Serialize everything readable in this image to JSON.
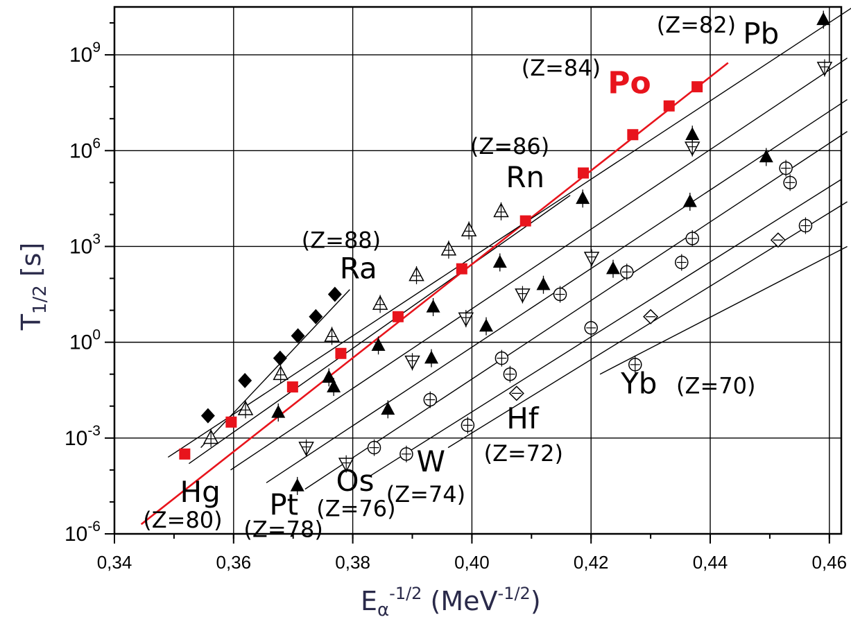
{
  "chart_data": {
    "type": "scatter",
    "x_axis": {
      "label_base": "E",
      "label_sub": "α",
      "label_sup": "-1/2",
      "label_unit_base": " (MeV",
      "label_unit_sup": "-1/2",
      "label_unit_close": ")",
      "range": [
        0.34,
        0.462
      ],
      "ticks": [
        0.34,
        0.36,
        0.38,
        0.4,
        0.42,
        0.44,
        0.46
      ],
      "tick_labels": [
        "0,34",
        "0,36",
        "0,38",
        "0,40",
        "0,42",
        "0,44",
        "0,46"
      ]
    },
    "y_axis": {
      "label_base": "T",
      "label_sub": "1/2",
      "label_unit": " [s]",
      "scale": "log",
      "range_exp": [
        -6,
        10.5
      ],
      "ticks_exp": [
        -6,
        -3,
        0,
        3,
        6,
        9
      ],
      "tick_labels": [
        {
          "base": "10",
          "exp": "-6"
        },
        {
          "base": "10",
          "exp": "-3"
        },
        {
          "base": "10",
          "exp": "0"
        },
        {
          "base": "10",
          "exp": "3"
        },
        {
          "base": "10",
          "exp": "6"
        },
        {
          "base": "10",
          "exp": "9"
        }
      ]
    },
    "grid": true,
    "series": [
      {
        "element": "Ra",
        "z_label": "(Z=88)",
        "marker": "diamond-filled",
        "color": "#000000",
        "fit": [
          [
            0.3545,
            -3.3
          ],
          [
            0.3795,
            1.65
          ]
        ],
        "points": [
          [
            0.3557,
            -2.3
          ],
          [
            0.3619,
            -1.2
          ],
          [
            0.3678,
            -0.5
          ],
          [
            0.3708,
            0.2
          ],
          [
            0.3738,
            0.8
          ],
          [
            0.377,
            1.5
          ]
        ]
      },
      {
        "element": "Rn",
        "z_label": "(Z=86)",
        "marker": "triangle-open",
        "color": "#000000",
        "fit": [
          [
            0.3525,
            -3.8
          ],
          [
            0.4165,
            4.6
          ]
        ],
        "points": [
          [
            0.3562,
            -3.0
          ],
          [
            0.362,
            -2.1
          ],
          [
            0.3679,
            -1.0
          ],
          [
            0.3765,
            0.2
          ],
          [
            0.3846,
            1.2
          ],
          [
            0.3907,
            2.1
          ],
          [
            0.3961,
            2.9
          ],
          [
            0.3995,
            3.5
          ],
          [
            0.4049,
            4.1
          ]
        ]
      },
      {
        "element": "Po",
        "z_label": "(Z=84)",
        "marker": "square-filled",
        "color": "#e8141c",
        "fit": [
          [
            0.3445,
            -5.7
          ],
          [
            0.443,
            8.75
          ]
        ],
        "points": [
          [
            0.3518,
            -3.5
          ],
          [
            0.3596,
            -2.5
          ],
          [
            0.3699,
            -1.4
          ],
          [
            0.378,
            -0.35
          ],
          [
            0.3876,
            0.8
          ],
          [
            0.3983,
            2.3
          ],
          [
            0.409,
            3.8
          ],
          [
            0.4187,
            5.3
          ],
          [
            0.427,
            6.5
          ],
          [
            0.4331,
            7.4
          ],
          [
            0.4378,
            8.0
          ]
        ]
      },
      {
        "element": "Pb",
        "z_label": "(Z=82)",
        "marker": "triangle-filled",
        "color": "#000000",
        "fit": [
          [
            0.349,
            -3.6
          ],
          [
            0.464,
            10.5
          ]
        ],
        "points": [
          [
            0.3675,
            -2.2
          ],
          [
            0.376,
            -1.1
          ],
          [
            0.3843,
            -0.1
          ],
          [
            0.3935,
            1.1
          ],
          [
            0.4047,
            2.5
          ],
          [
            0.4186,
            4.5
          ],
          [
            0.437,
            6.5
          ],
          [
            0.459,
            10.1
          ]
        ]
      },
      {
        "element": "Hg",
        "z_label": "(Z=80)",
        "marker": "triangle-filled",
        "color": "#000000",
        "fit": [
          [
            0.3595,
            -4.0
          ],
          [
            0.463,
            8.9
          ]
        ],
        "points": [
          [
            0.3707,
            -4.5
          ],
          [
            0.3768,
            -1.4
          ],
          [
            0.3859,
            -2.1
          ],
          [
            0.3932,
            -0.5
          ],
          [
            0.4024,
            0.5
          ],
          [
            0.412,
            1.8
          ],
          [
            0.4237,
            2.3
          ],
          [
            0.4366,
            4.4
          ],
          [
            0.4494,
            5.8
          ]
        ]
      },
      {
        "element": "Pt",
        "z_label": "(Z=78)",
        "marker": "triangle-down-open",
        "color": "#000000",
        "fit": [
          [
            0.3655,
            -4.4
          ],
          [
            0.463,
            7.6
          ]
        ],
        "points": [
          [
            0.3722,
            -3.3
          ],
          [
            0.3789,
            -3.8
          ],
          [
            0.39,
            -0.6
          ],
          [
            0.399,
            0.75
          ],
          [
            0.4085,
            1.5
          ],
          [
            0.4201,
            2.65
          ],
          [
            0.437,
            6.1
          ],
          [
            0.4592,
            8.6
          ]
        ]
      },
      {
        "element": "Os",
        "z_label": "(Z=76)",
        "marker": "circle-open",
        "color": "#000000",
        "fit": [
          [
            0.372,
            -4.6
          ],
          [
            0.463,
            6.6
          ]
        ],
        "points": [
          [
            0.3836,
            -3.3
          ],
          [
            0.393,
            -1.8
          ],
          [
            0.405,
            -0.5
          ],
          [
            0.4148,
            1.5
          ],
          [
            0.426,
            2.2
          ],
          [
            0.437,
            3.25
          ],
          [
            0.4527,
            5.45
          ],
          [
            0.4534,
            5.0
          ]
        ]
      },
      {
        "element": "W",
        "z_label": "(Z=74)",
        "marker": "circle-open",
        "color": "#000000",
        "fit": [
          [
            0.3828,
            -4.2
          ],
          [
            0.462,
            5.1
          ]
        ],
        "points": [
          [
            0.389,
            -3.5
          ],
          [
            0.3993,
            -2.6
          ],
          [
            0.4064,
            -1.0
          ],
          [
            0.42,
            0.45
          ],
          [
            0.4352,
            2.5
          ],
          [
            0.456,
            3.65
          ]
        ]
      },
      {
        "element": "Hf",
        "z_label": "(Z=72)",
        "marker": "diamond-open",
        "color": "#000000",
        "fit": [
          [
            0.396,
            -3.3
          ],
          [
            0.463,
            4.4
          ]
        ],
        "points": [
          [
            0.4075,
            -1.6
          ],
          [
            0.43,
            0.8
          ],
          [
            0.4514,
            3.2
          ]
        ]
      },
      {
        "element": "Yb",
        "z_label": "(Z=70)",
        "marker": "circle-open",
        "color": "#000000",
        "fit": [
          [
            0.4215,
            -1.0
          ],
          [
            0.463,
            3.0
          ]
        ],
        "points": [
          [
            0.4274,
            -0.7
          ]
        ]
      }
    ],
    "annotations": [
      {
        "text": "(Z=88)",
        "x": 0.3714,
        "y_exp": 2.96,
        "size": 32,
        "anchor": "start",
        "color": "#000000",
        "weight": "normal",
        "name": "label-ra-z"
      },
      {
        "text": "Ra",
        "x": 0.3778,
        "y_exp": 2.0,
        "size": 42,
        "anchor": "start",
        "color": "#000000",
        "weight": "normal",
        "name": "label-ra"
      },
      {
        "text": "(Z=86)",
        "x": 0.3997,
        "y_exp": 5.9,
        "size": 32,
        "anchor": "start",
        "color": "#000000",
        "weight": "normal",
        "name": "label-rn-z"
      },
      {
        "text": "Rn",
        "x": 0.4057,
        "y_exp": 4.85,
        "size": 42,
        "anchor": "start",
        "color": "#000000",
        "weight": "normal",
        "name": "label-rn"
      },
      {
        "text": "(Z=84)",
        "x": 0.4083,
        "y_exp": 8.35,
        "size": 32,
        "anchor": "start",
        "color": "#000000",
        "weight": "normal",
        "name": "label-po-z"
      },
      {
        "text": "Po",
        "x": 0.4228,
        "y_exp": 7.8,
        "size": 44,
        "anchor": "start",
        "color": "#e8141c",
        "weight": "bold",
        "name": "label-po"
      },
      {
        "text": "(Z=82)",
        "x": 0.431,
        "y_exp": 9.7,
        "size": 32,
        "anchor": "start",
        "color": "#000000",
        "weight": "normal",
        "name": "label-pb-z"
      },
      {
        "text": "Pb",
        "x": 0.4455,
        "y_exp": 9.35,
        "size": 42,
        "anchor": "start",
        "color": "#000000",
        "weight": "normal",
        "name": "label-pb"
      },
      {
        "text": "Hg",
        "x": 0.351,
        "y_exp": -5.0,
        "size": 42,
        "anchor": "start",
        "color": "#000000",
        "weight": "normal",
        "name": "label-hg"
      },
      {
        "text": "(Z=80)",
        "x": 0.3448,
        "y_exp": -5.8,
        "size": 32,
        "anchor": "start",
        "color": "#000000",
        "weight": "normal",
        "name": "label-hg-z"
      },
      {
        "text": "Pt",
        "x": 0.366,
        "y_exp": -5.4,
        "size": 42,
        "anchor": "start",
        "color": "#000000",
        "weight": "normal",
        "name": "label-pt"
      },
      {
        "text": "(Z=78)",
        "x": 0.3617,
        "y_exp": -6.1,
        "size": 32,
        "anchor": "start",
        "color": "#000000",
        "weight": "normal",
        "name": "label-pt-z"
      },
      {
        "text": "Os",
        "x": 0.3772,
        "y_exp": -4.65,
        "size": 42,
        "anchor": "start",
        "color": "#000000",
        "weight": "normal",
        "name": "label-os"
      },
      {
        "text": "(Z=76)",
        "x": 0.3739,
        "y_exp": -5.45,
        "size": 32,
        "anchor": "start",
        "color": "#000000",
        "weight": "normal",
        "name": "label-os-z"
      },
      {
        "text": "W",
        "x": 0.3907,
        "y_exp": -4.05,
        "size": 42,
        "anchor": "start",
        "color": "#000000",
        "weight": "normal",
        "name": "label-w"
      },
      {
        "text": "(Z=74)",
        "x": 0.3856,
        "y_exp": -5.0,
        "size": 32,
        "anchor": "start",
        "color": "#000000",
        "weight": "normal",
        "name": "label-w-z"
      },
      {
        "text": "Hf",
        "x": 0.4058,
        "y_exp": -2.7,
        "size": 42,
        "anchor": "start",
        "color": "#000000",
        "weight": "normal",
        "name": "label-hf"
      },
      {
        "text": "(Z=72)",
        "x": 0.402,
        "y_exp": -3.72,
        "size": 32,
        "anchor": "start",
        "color": "#000000",
        "weight": "normal",
        "name": "label-hf-z"
      },
      {
        "text": "Yb",
        "x": 0.425,
        "y_exp": -1.6,
        "size": 42,
        "anchor": "start",
        "color": "#000000",
        "weight": "normal",
        "name": "label-yb"
      },
      {
        "text": "(Z=70)",
        "x": 0.4343,
        "y_exp": -1.6,
        "size": 32,
        "anchor": "start",
        "color": "#000000",
        "weight": "normal",
        "name": "label-yb-z"
      }
    ]
  }
}
